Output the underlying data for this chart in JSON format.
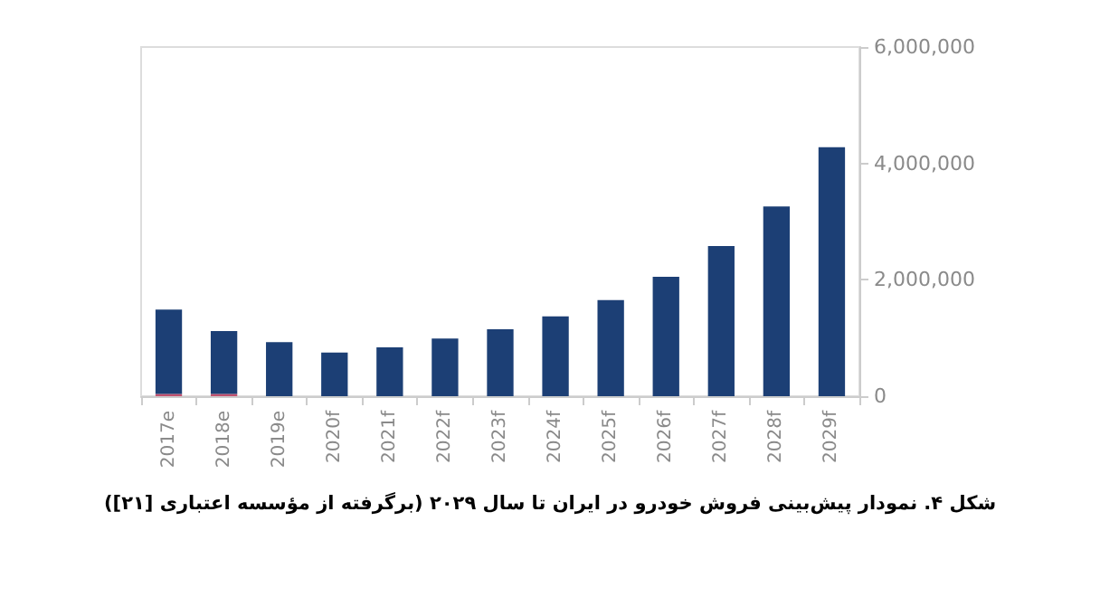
{
  "chart_data": {
    "type": "bar",
    "title": "شکل ۴. نمودار پیش‌بینی فروش خودرو در ایران تا سال ۲۰۲۹ (برگرفته از مؤسسه اعتباری [۲۱])",
    "categories": [
      "2017e",
      "2018e",
      "2019e",
      "2020f",
      "2021f",
      "2022f",
      "2023f",
      "2024f",
      "2025f",
      "2026f",
      "2027f",
      "2028f",
      "2029f"
    ],
    "stacked": true,
    "series": [
      {
        "color": "#c0506e",
        "values": [
          40000,
          40000,
          null,
          null,
          null,
          null,
          null,
          null,
          null,
          null,
          null,
          null,
          null
        ]
      },
      {
        "color": "#1c3f75",
        "values": [
          1450000,
          1080000,
          930000,
          750000,
          840000,
          990000,
          1150000,
          1370000,
          1650000,
          2050000,
          2580000,
          3260000,
          4280000
        ]
      }
    ],
    "ylim": [
      0,
      6000000
    ],
    "yticks": [
      0,
      {
        "value": 2000000,
        "label": "2,000,000"
      },
      {
        "value": 4000000,
        "label": "4,000,000"
      },
      {
        "value": 6000000,
        "label": "6,000,000"
      }
    ],
    "grid": false
  }
}
